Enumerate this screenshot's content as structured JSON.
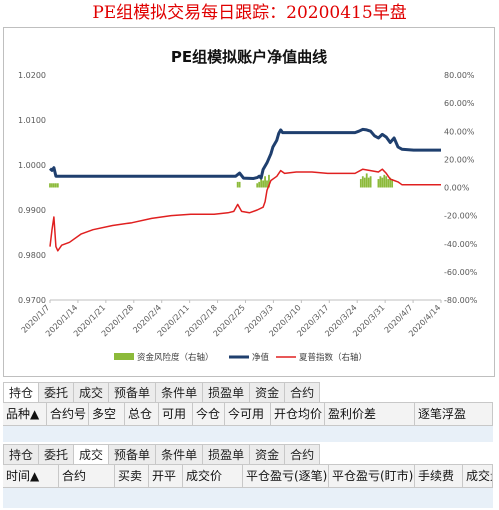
{
  "headline": "PE组模拟交易每日跟踪：20200415早盘",
  "chart_data": {
    "type": "line",
    "title": "PE组模拟账户净值曲线",
    "x_ticks": [
      "2020/1/7",
      "2020/1/14",
      "2020/1/21",
      "2020/1/28",
      "2020/2/4",
      "2020/2/11",
      "2020/2/18",
      "2020/2/25",
      "2020/3/3",
      "2020/3/10",
      "2020/3/17",
      "2020/3/24",
      "2020/3/31",
      "2020/4/7",
      "2020/4/14"
    ],
    "y_left": {
      "min": 0.97,
      "max": 1.02,
      "ticks": [
        "0.9700",
        "0.9800",
        "0.9900",
        "1.0000",
        "1.0100",
        "1.0200"
      ]
    },
    "y_right": {
      "min": -80,
      "max": 80,
      "ticks": [
        "-80.00%",
        "-60.00%",
        "-40.00%",
        "-20.00%",
        "0.00%",
        "20.00%",
        "40.00%",
        "60.00%",
        "80.00%"
      ]
    },
    "colors": {
      "nav": "#1f3f6e",
      "index": "#e02020",
      "risk": "#8cba3a"
    },
    "legend_position": "bottom",
    "series": [
      {
        "name": "资金风险度（右轴）",
        "kind": "bar",
        "axis": "right",
        "points": [
          [
            0,
            3
          ],
          [
            0.5,
            3
          ],
          [
            1,
            3
          ],
          [
            1.5,
            3
          ],
          [
            2,
            3
          ],
          [
            48,
            4
          ],
          [
            48.5,
            4
          ],
          [
            53,
            3
          ],
          [
            53.5,
            4
          ],
          [
            54,
            7
          ],
          [
            54.5,
            5
          ],
          [
            55,
            8
          ],
          [
            55.5,
            5
          ],
          [
            56,
            9
          ],
          [
            79.5,
            6
          ],
          [
            80,
            8
          ],
          [
            80.5,
            7
          ],
          [
            81,
            10
          ],
          [
            81.5,
            7
          ],
          [
            82,
            8
          ],
          [
            84,
            6
          ],
          [
            84.5,
            8
          ],
          [
            85,
            7
          ],
          [
            85.5,
            9
          ],
          [
            86,
            8
          ],
          [
            86.5,
            6
          ],
          [
            87,
            7
          ],
          [
            87.5,
            6
          ]
        ]
      },
      {
        "name": "净值",
        "kind": "line",
        "axis": "left",
        "points": [
          [
            0,
            0.9992
          ],
          [
            0.5,
            0.9988
          ],
          [
            1,
            0.9994
          ],
          [
            1.5,
            0.9975
          ],
          [
            2,
            0.9975
          ],
          [
            8,
            0.9975
          ],
          [
            14,
            0.9975
          ],
          [
            20,
            0.9975
          ],
          [
            26,
            0.9975
          ],
          [
            32,
            0.9975
          ],
          [
            38,
            0.9975
          ],
          [
            46,
            0.9975
          ],
          [
            47.5,
            0.9975
          ],
          [
            48.5,
            0.9982
          ],
          [
            49.5,
            0.9971
          ],
          [
            52,
            0.997
          ],
          [
            53,
            0.9972
          ],
          [
            53.5,
            0.9975
          ],
          [
            54,
            0.9971
          ],
          [
            54.5,
            0.999
          ],
          [
            55.5,
            1.0005
          ],
          [
            56.5,
            1.0025
          ],
          [
            57,
            1.004
          ],
          [
            58,
            1.0055
          ],
          [
            58.5,
            1.007
          ],
          [
            59,
            1.0078
          ],
          [
            59.5,
            1.0072
          ],
          [
            65,
            1.0072
          ],
          [
            70,
            1.0072
          ],
          [
            75,
            1.0072
          ],
          [
            78,
            1.0072
          ],
          [
            79,
            1.0075
          ],
          [
            80,
            1.0079
          ],
          [
            81,
            1.0078
          ],
          [
            82,
            1.0075
          ],
          [
            83,
            1.0065
          ],
          [
            84,
            1.006
          ],
          [
            85,
            1.0068
          ],
          [
            86,
            1.0062
          ],
          [
            87,
            1.005
          ],
          [
            88,
            1.006
          ],
          [
            89,
            1.004
          ],
          [
            90,
            1.0035
          ],
          [
            93,
            1.0033
          ],
          [
            96,
            1.0033
          ],
          [
            100,
            1.0033
          ]
        ]
      },
      {
        "name": "夏普指数（右轴）",
        "kind": "line",
        "axis": "right",
        "points": [
          [
            0,
            -42
          ],
          [
            0.5,
            -30
          ],
          [
            1,
            -21
          ],
          [
            1.5,
            -42
          ],
          [
            2,
            -45
          ],
          [
            3,
            -41
          ],
          [
            5,
            -39
          ],
          [
            8,
            -33
          ],
          [
            11,
            -30
          ],
          [
            16,
            -27
          ],
          [
            21,
            -25
          ],
          [
            26,
            -22
          ],
          [
            31,
            -20
          ],
          [
            36,
            -19
          ],
          [
            42,
            -19
          ],
          [
            45.5,
            -18
          ],
          [
            47,
            -17
          ],
          [
            48,
            -12
          ],
          [
            49,
            -17
          ],
          [
            51,
            -18
          ],
          [
            53,
            -16
          ],
          [
            54.5,
            -14
          ],
          [
            55,
            -10
          ],
          [
            55.5,
            -2
          ],
          [
            56.5,
            5
          ],
          [
            58,
            8
          ],
          [
            59,
            12
          ],
          [
            60,
            10
          ],
          [
            63,
            11
          ],
          [
            67,
            11
          ],
          [
            71,
            10
          ],
          [
            75,
            10
          ],
          [
            78,
            10
          ],
          [
            80,
            13
          ],
          [
            82,
            12
          ],
          [
            84,
            11
          ],
          [
            85,
            13
          ],
          [
            86,
            10
          ],
          [
            87,
            6
          ],
          [
            88,
            5
          ],
          [
            89,
            4
          ],
          [
            90,
            2
          ],
          [
            93,
            2
          ],
          [
            96,
            2
          ],
          [
            100,
            2
          ]
        ]
      }
    ]
  },
  "panel1": {
    "tabs": [
      "持仓",
      "委托",
      "成交",
      "预备单",
      "条件单",
      "损盈单",
      "资金",
      "合约"
    ],
    "columns": [
      "品种▲",
      "合约号",
      "多空",
      "总仓",
      "可用",
      "今仓",
      "今可用",
      "开仓均价",
      "盈利价差",
      "逐笔浮盈"
    ]
  },
  "panel2": {
    "tabs": [
      "持仓",
      "委托",
      "成交",
      "预备单",
      "条件单",
      "损盈单",
      "资金",
      "合约"
    ],
    "columns": [
      "时间▲",
      "合约",
      "买卖",
      "开平",
      "成交价",
      "平仓盈亏(逐笔)",
      "平仓盈亏(盯市)",
      "手续费",
      "成交量"
    ]
  }
}
